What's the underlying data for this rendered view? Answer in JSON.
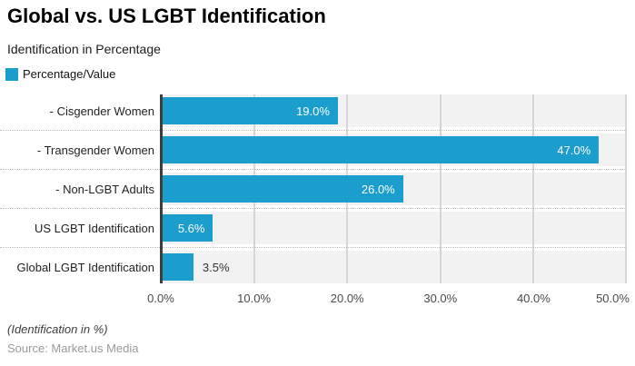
{
  "title": "Global vs. US LGBT Identification",
  "subtitle": "Identification in Percentage",
  "legend": {
    "label": "Percentage/Value",
    "color": "#1b9dce"
  },
  "chart_data": {
    "type": "bar",
    "orientation": "horizontal",
    "title": "Global vs. US LGBT Identification",
    "subtitle": "Identification in Percentage",
    "series_name": "Percentage/Value",
    "categories": [
      "- Cisgender Women",
      "- Transgender Women",
      "- Non-LGBT Adults",
      "US LGBT Identification",
      "Global LGBT Identification"
    ],
    "values": [
      19.0,
      47.0,
      26.0,
      5.6,
      3.5
    ],
    "value_labels": [
      "19.0%",
      "47.0%",
      "26.0%",
      "5.6%",
      "3.5%"
    ],
    "xlim": [
      0,
      50
    ],
    "x_ticks": [
      "0.0%",
      "10.0%",
      "20.0%",
      "30.0%",
      "40.0%",
      "50.0%"
    ],
    "grid": true,
    "legend_position": "top-left",
    "bar_color": "#1b9dce",
    "band_color": "#f2f2f2"
  },
  "footer": {
    "note": "(Identification in %)",
    "source": "Source: Market.us Media"
  }
}
